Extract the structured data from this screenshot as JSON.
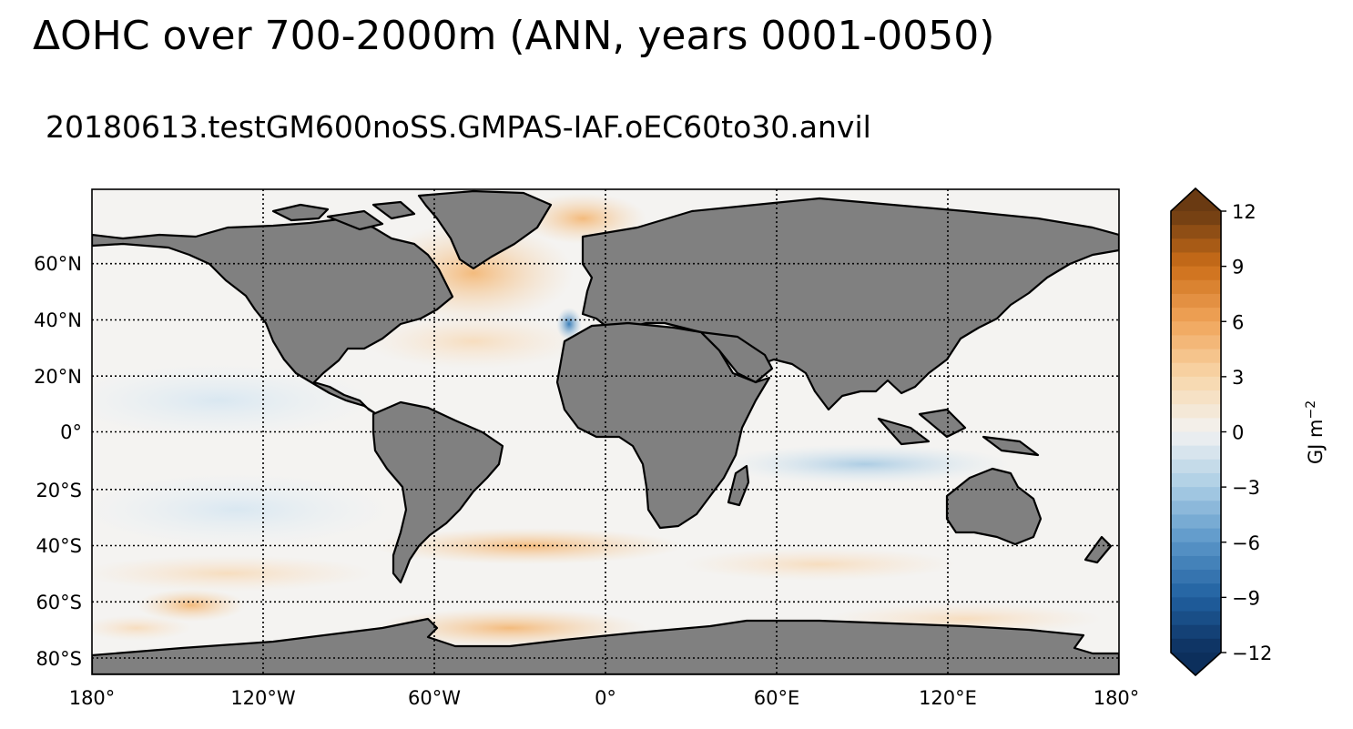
{
  "title": "ΔOHC over 700-2000m (ANN, years 0001-0050)",
  "subtitle": "20180613.testGM600noSS.GMPAS-IAF.oEC60to30.anvil",
  "map": {
    "projection": "plate-carree",
    "lon_range": [
      -180,
      180
    ],
    "lat_range": [
      -85,
      85
    ],
    "lon_ticks": [
      {
        "value": -180,
        "label": "180°"
      },
      {
        "value": -120,
        "label": "120°W"
      },
      {
        "value": -60,
        "label": "60°W"
      },
      {
        "value": 0,
        "label": "0°"
      },
      {
        "value": 60,
        "label": "60°E"
      },
      {
        "value": 120,
        "label": "120°E"
      },
      {
        "value": 180,
        "label": "180°"
      }
    ],
    "lat_ticks": [
      {
        "value": 60,
        "label": "60°N"
      },
      {
        "value": 40,
        "label": "40°N"
      },
      {
        "value": 20,
        "label": "20°N"
      },
      {
        "value": 0,
        "label": "0°"
      },
      {
        "value": -20,
        "label": "20°S"
      },
      {
        "value": -40,
        "label": "40°S"
      },
      {
        "value": -60,
        "label": "60°S"
      },
      {
        "value": -80,
        "label": "80°S"
      }
    ],
    "gridlines": "dotted",
    "land_color": "#808080",
    "coastline_color": "#000000"
  },
  "colorbar": {
    "label": "GJ m",
    "label_exponent": "−2",
    "range": [
      -12,
      12
    ],
    "extend": "both",
    "colormap": "diverging blue-white-orange-brown",
    "ticks": [
      {
        "value": 12,
        "label": "12"
      },
      {
        "value": 9,
        "label": "9"
      },
      {
        "value": 6,
        "label": "6"
      },
      {
        "value": 3,
        "label": "3"
      },
      {
        "value": 0,
        "label": "0"
      },
      {
        "value": -3,
        "label": "−3"
      },
      {
        "value": -6,
        "label": "−6"
      },
      {
        "value": -9,
        "label": "−9"
      },
      {
        "value": -12,
        "label": "−12"
      }
    ]
  }
}
